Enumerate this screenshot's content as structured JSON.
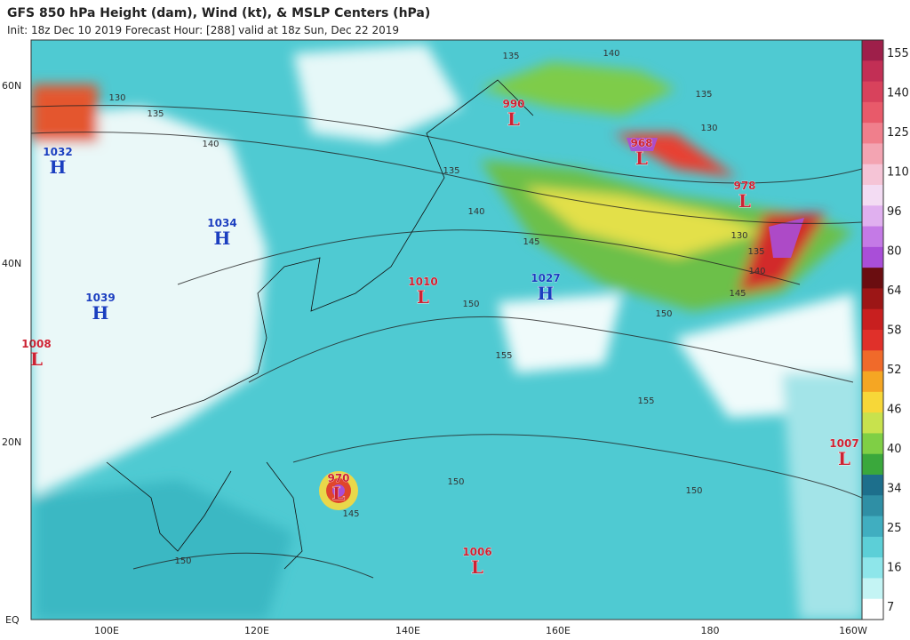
{
  "header": {
    "title": "GFS 850 hPa Height (dam), Wind (kt), & MSLP Centers (hPa)",
    "subtitle": "Init: 18z Dec 10 2019   Forecast Hour: [288]   valid at 18z Sun, Dec 22 2019"
  },
  "map": {
    "lat_labels": [
      "60N",
      "40N",
      "20N",
      "EQ"
    ],
    "lon_labels": [
      "100E",
      "120E",
      "140E",
      "160E",
      "180",
      "160W"
    ],
    "centers": [
      {
        "value": "1032",
        "letter": "H"
      },
      {
        "value": "1034",
        "letter": "H"
      },
      {
        "value": "1039",
        "letter": "H"
      },
      {
        "value": "1008",
        "letter": "L"
      },
      {
        "value": "990",
        "letter": "L"
      },
      {
        "value": "968",
        "letter": "L"
      },
      {
        "value": "978",
        "letter": "L"
      },
      {
        "value": "1010",
        "letter": "L"
      },
      {
        "value": "1027",
        "letter": "H"
      },
      {
        "value": "970",
        "letter": "L"
      },
      {
        "value": "1006",
        "letter": "L"
      },
      {
        "value": "1007",
        "letter": "L"
      }
    ],
    "contour_labels": [
      "130",
      "135",
      "140",
      "135",
      "140",
      "145",
      "150",
      "155",
      "155",
      "150",
      "150",
      "150",
      "145",
      "135",
      "140",
      "135",
      "130",
      "130",
      "135",
      "140",
      "145",
      "150"
    ]
  },
  "colorbar": {
    "labels": [
      "155",
      "140",
      "125",
      "110",
      "96",
      "80",
      "64",
      "58",
      "52",
      "46",
      "40",
      "34",
      "25",
      "16",
      "7"
    ]
  }
}
